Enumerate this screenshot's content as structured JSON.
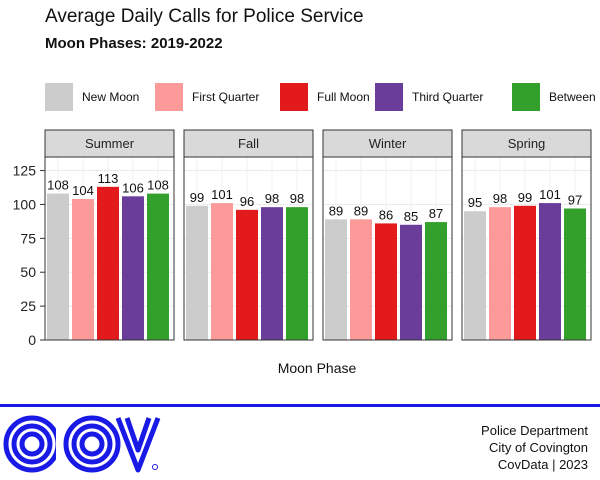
{
  "title": "Average Daily Calls for Police Service",
  "subtitle": "Moon Phases: 2019-2022",
  "logo_text": "COV",
  "footer": {
    "line1": "Police Department",
    "line2": "City of Covington",
    "line3": "CovData | 2023"
  },
  "colors": {
    "New Moon": "#cccccc",
    "First Quarter": "#fb9a99",
    "Full Moon": "#e31a1c",
    "Third Quarter": "#6a3d9a",
    "Between": "#33a02c",
    "brand_blue": "#1a1ae6"
  },
  "chart_data": {
    "type": "bar",
    "xlabel": "Moon Phase",
    "ylabel": "",
    "ylim": [
      0,
      135
    ],
    "y_ticks": [
      0,
      25,
      50,
      75,
      100,
      125
    ],
    "grid": true,
    "legend_position": "top",
    "categories": [
      "New Moon",
      "First Quarter",
      "Full Moon",
      "Third Quarter",
      "Between"
    ],
    "facets": [
      {
        "name": "Summer",
        "values": [
          108,
          104,
          113,
          106,
          108
        ]
      },
      {
        "name": "Fall",
        "values": [
          99,
          101,
          96,
          98,
          98
        ]
      },
      {
        "name": "Winter",
        "values": [
          89,
          89,
          86,
          85,
          87
        ]
      },
      {
        "name": "Spring",
        "values": [
          95,
          98,
          99,
          101,
          97
        ]
      }
    ]
  }
}
